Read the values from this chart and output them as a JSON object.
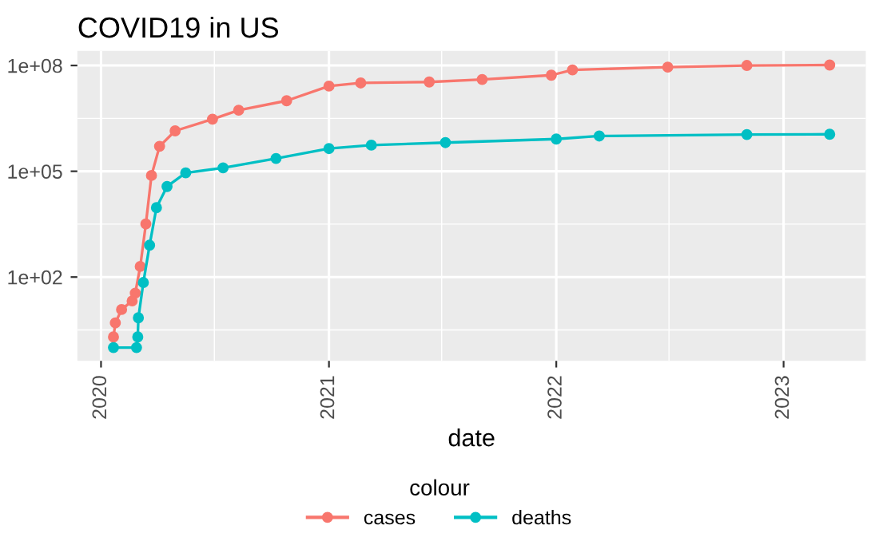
{
  "chart_data": {
    "type": "line",
    "title": "COVID19 in US",
    "xlabel": "date",
    "legend_title": "colour",
    "log": "y",
    "marker": "circle",
    "line_style": "solid",
    "grid": true,
    "legend": "bottom",
    "xlim": [
      "2019-11-24",
      "2023-05-13"
    ],
    "xticks": [
      {
        "value": "2020-01-01",
        "label": "2020"
      },
      {
        "value": "2020-07-01",
        "label": null
      },
      {
        "value": "2021-01-01",
        "label": "2021"
      },
      {
        "value": "2021-07-01",
        "label": null
      },
      {
        "value": "2022-01-01",
        "label": "2022"
      },
      {
        "value": "2022-07-01",
        "label": null
      },
      {
        "value": "2023-01-01",
        "label": "2023"
      }
    ],
    "ylim": [
      0.42,
      260000000
    ],
    "yticks": [
      {
        "value": 3.162,
        "label": null
      },
      {
        "value": 100,
        "label": "1e+02"
      },
      {
        "value": 3162,
        "label": null
      },
      {
        "value": 100000,
        "label": "1e+05"
      },
      {
        "value": 3162278,
        "label": null
      },
      {
        "value": 100000000,
        "label": "1e+08"
      }
    ],
    "series": [
      {
        "name": "cases",
        "color": "#f8766d",
        "x": [
          "2020-01-21",
          "2020-01-24",
          "2020-02-03",
          "2020-02-20",
          "2020-02-25",
          "2020-03-04",
          "2020-03-13",
          "2020-03-22",
          "2020-04-04",
          "2020-04-29",
          "2020-06-28",
          "2020-08-09",
          "2020-10-25",
          "2021-01-01",
          "2021-02-21",
          "2021-06-11",
          "2021-09-04",
          "2021-12-24",
          "2022-01-27",
          "2022-06-29",
          "2022-11-03",
          "2023-03-16"
        ],
        "values": [
          2,
          5,
          12,
          21,
          35,
          200,
          3200,
          76000,
          510000,
          1400000,
          3000000,
          5400000,
          10000000,
          26000000,
          32000000,
          34000000,
          40000000,
          53000000,
          75000000,
          90000000,
          100000000,
          103000000
        ]
      },
      {
        "name": "deaths",
        "color": "#00bfc4",
        "x": [
          "2020-01-21",
          "2020-02-27",
          "2020-02-29",
          "2020-03-01",
          "2020-03-09",
          "2020-03-19",
          "2020-03-30",
          "2020-04-16",
          "2020-05-16",
          "2020-07-15",
          "2020-10-08",
          "2021-01-01",
          "2021-03-10",
          "2021-07-07",
          "2022-01-01",
          "2022-03-11",
          "2022-11-03",
          "2023-03-16"
        ],
        "values": [
          1,
          1,
          2,
          7,
          70,
          800,
          9300,
          37000,
          90000,
          125000,
          230000,
          440000,
          550000,
          650000,
          820000,
          1000000,
          1100000,
          1120000
        ]
      }
    ]
  }
}
